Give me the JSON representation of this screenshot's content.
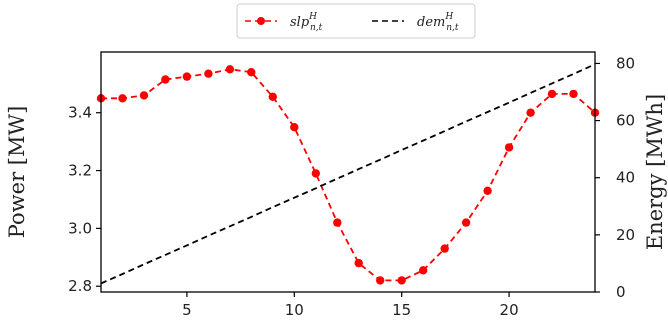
{
  "chart_data": {
    "type": "line",
    "x": [
      1,
      2,
      3,
      4,
      5,
      6,
      7,
      8,
      9,
      10,
      11,
      12,
      13,
      14,
      15,
      16,
      17,
      18,
      19,
      20,
      21,
      22,
      23,
      24
    ],
    "series": [
      {
        "name": "slp",
        "name_sup": "H",
        "name_sub": "n,t",
        "axis": "left",
        "style": "dashed-with-markers",
        "color": "#ff0000",
        "values": [
          3.45,
          3.45,
          3.46,
          3.515,
          3.525,
          3.535,
          3.55,
          3.54,
          3.455,
          3.35,
          3.19,
          3.02,
          2.88,
          2.82,
          2.82,
          2.855,
          2.93,
          3.02,
          3.13,
          3.28,
          3.4,
          3.465,
          3.465,
          3.4
        ]
      },
      {
        "name": "dem",
        "name_sup": "H",
        "name_sub": "n,t",
        "axis": "right",
        "style": "dashed",
        "color": "#000000",
        "values": [
          3.0,
          6.3,
          9.7,
          13.0,
          16.3,
          19.7,
          23.0,
          26.3,
          29.7,
          33.0,
          36.3,
          39.7,
          43.0,
          46.3,
          49.7,
          53.0,
          56.3,
          59.7,
          63.0,
          66.3,
          69.7,
          73.0,
          76.3,
          79.7
        ]
      }
    ],
    "xlim": [
      1,
      24
    ],
    "xticks": [
      5,
      10,
      15,
      20
    ],
    "ylim_left": [
      2.78,
      3.61
    ],
    "yticks_left": [
      2.8,
      3.0,
      3.2,
      3.4
    ],
    "ytick_labels_left": [
      "2.8",
      "3.0",
      "3.2",
      "3.4"
    ],
    "ylim_right": [
      0,
      84
    ],
    "yticks_right": [
      0,
      20,
      40,
      60,
      80
    ],
    "ylabel_left": "Power [MW]",
    "ylabel_right": "Energy [MWh]",
    "xlabel": "",
    "legend_position": "top-center",
    "grid": false
  }
}
